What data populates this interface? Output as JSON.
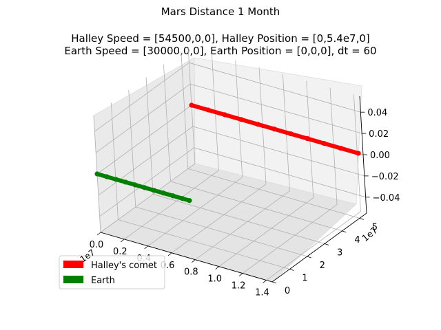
{
  "figure": {
    "title_lines": [
      "Mars Distance 1 Month",
      "",
      "Halley Speed = [54500,0,0], Halley Position = [0,5.4e7,0]",
      " Earth Speed = [30000,0,0], Earth Position = [0,0,0], dt = 60"
    ]
  },
  "chart_data": {
    "type": "scatter",
    "projection": "3d",
    "title": "Mars Distance 1 Month\n\nHalley Speed = [54500,0,0], Halley Position = [0,5.4e7,0]\n Earth Speed = [30000,0,0], Earth Position = [0,0,0], dt = 60",
    "x_ticks": [
      "0.0",
      "0.2",
      "0.4",
      "0.6",
      "0.8",
      "1.0",
      "1.2",
      "1.4"
    ],
    "x_offset_label": "1e7",
    "x_range": [
      0.0,
      1.45
    ],
    "y_ticks": [
      "0",
      "1",
      "2",
      "3",
      "4",
      "5"
    ],
    "y_offset_label": "1e7",
    "y_range": [
      0,
      5.4
    ],
    "z_ticks": [
      "0.04",
      "0.02",
      "0.00",
      "−0.02",
      "−0.04"
    ],
    "z_range": [
      -0.055,
      0.055
    ],
    "grid": true,
    "legend_position": "lower-left",
    "series": [
      {
        "name": "Halley's comet",
        "color": "#ff0000",
        "x": [
          0.0,
          0.14,
          0.28,
          0.42,
          0.56,
          0.7,
          0.84,
          0.98,
          1.12,
          1.26,
          1.41
        ],
        "y": [
          5.4,
          5.4,
          5.4,
          5.4,
          5.4,
          5.4,
          5.4,
          5.4,
          5.4,
          5.4,
          5.4
        ],
        "z": [
          0,
          0,
          0,
          0,
          0,
          0,
          0,
          0,
          0,
          0,
          0
        ]
      },
      {
        "name": "Earth",
        "color": "#008000",
        "x": [
          0.0,
          0.08,
          0.16,
          0.24,
          0.32,
          0.4,
          0.48,
          0.56,
          0.64,
          0.72,
          0.78
        ],
        "y": [
          0,
          0,
          0,
          0,
          0,
          0,
          0,
          0,
          0,
          0,
          0
        ],
        "z": [
          0,
          0,
          0,
          0,
          0,
          0,
          0,
          0,
          0,
          0,
          0
        ]
      }
    ]
  }
}
